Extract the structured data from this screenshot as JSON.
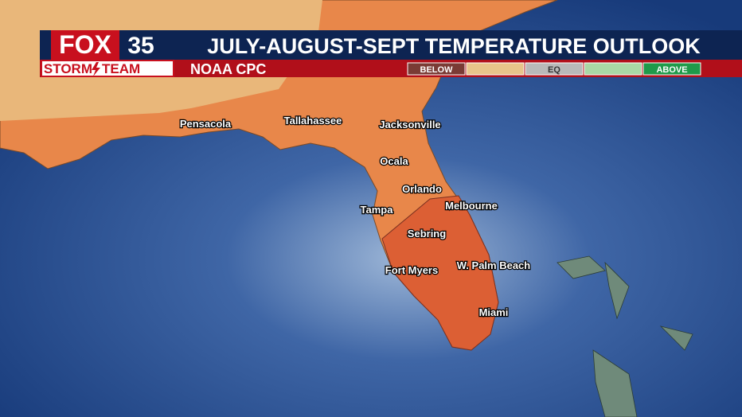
{
  "header": {
    "logo": "FOX",
    "channel": "35",
    "team_left": "STORM",
    "team_right": "TEAM",
    "title": "JULY-AUGUST-SEPT TEMPERATURE OUTLOOK",
    "source": "NOAA CPC"
  },
  "legend": [
    {
      "label": "BELOW",
      "color": "#7a3b35"
    },
    {
      "color": "#e8c48a"
    },
    {
      "label": "EQ",
      "color": "#b9b9b9"
    },
    {
      "color": "#a9d8a5"
    },
    {
      "label": "ABOVE",
      "color": "#1f9a4a"
    }
  ],
  "cities": [
    "Pensacola",
    "Tallahassee",
    "Jacksonville",
    "Ocala",
    "Orlando",
    "Tampa",
    "Melbourne",
    "Sebring",
    "W. Palm Beach",
    "Fort Myers",
    "Miami"
  ]
}
